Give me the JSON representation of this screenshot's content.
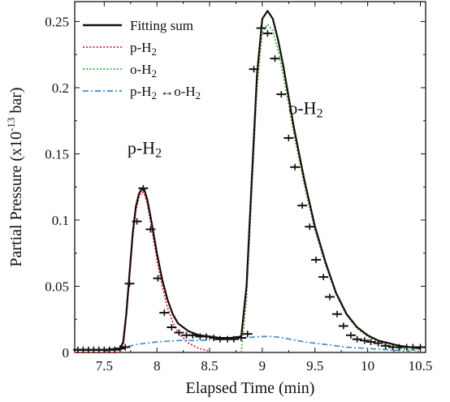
{
  "chart_data": {
    "type": "line",
    "xlabel": "Elapsed Time (min)",
    "ylabel": "Partial Pressure (x10",
    "ylabel_exp": "-13",
    "ylabel_unit": " bar)",
    "xlim": [
      7.22,
      10.55
    ],
    "ylim": [
      0,
      0.265
    ],
    "x_ticks": [
      {
        "v": 7.5,
        "label": "7.5"
      },
      {
        "v": 8,
        "label": "8"
      },
      {
        "v": 8.5,
        "label": "8.5"
      },
      {
        "v": 9,
        "label": "9"
      },
      {
        "v": 9.5,
        "label": "9.5"
      },
      {
        "v": 10,
        "label": "10"
      },
      {
        "v": 10.5,
        "label": "10.5"
      }
    ],
    "y_ticks": [
      {
        "v": 0,
        "label": "0"
      },
      {
        "v": 0.05,
        "label": "0.05"
      },
      {
        "v": 0.1,
        "label": "0.1"
      },
      {
        "v": 0.15,
        "label": "0.15"
      },
      {
        "v": 0.2,
        "label": "0.2"
      },
      {
        "v": 0.25,
        "label": "0.25"
      }
    ],
    "grid": false,
    "legend_position": "top-left",
    "legend": [
      {
        "label": "Fitting sum",
        "color": "#1a0a0a",
        "dash": "solid"
      },
      {
        "label": "p-H",
        "sub": "2",
        "color": "#e02020",
        "dash": "dotted"
      },
      {
        "label": "o-H",
        "sub": "2",
        "color": "#3cb043",
        "dash": "dotted"
      },
      {
        "label": "p-H",
        "sub": "2",
        "arrow": " ↔",
        "label2": "o-H",
        "sub2": "2",
        "color": "#3a8fd0",
        "dash": "dashdot"
      }
    ],
    "annotations": [
      {
        "label": "p-H",
        "sub": "2",
        "x": 7.72,
        "y": 0.15
      },
      {
        "label": "o-H",
        "sub": "2",
        "x": 9.25,
        "y": 0.18
      }
    ],
    "series": [
      {
        "name": "Fitting sum",
        "color": "#1a0a0a",
        "dash": "solid",
        "x": [
          7.22,
          7.5,
          7.65,
          7.68,
          7.71,
          7.74,
          7.77,
          7.8,
          7.83,
          7.86,
          7.88,
          7.91,
          7.95,
          8.0,
          8.05,
          8.1,
          8.15,
          8.2,
          8.3,
          8.4,
          8.5,
          8.6,
          8.7,
          8.8,
          8.85,
          8.9,
          8.95,
          9.0,
          9.05,
          9.1,
          9.15,
          9.2,
          9.3,
          9.4,
          9.5,
          9.6,
          9.7,
          9.8,
          9.9,
          10.0,
          10.1,
          10.2,
          10.3,
          10.4,
          10.5
        ],
        "y": [
          0.002,
          0.002,
          0.003,
          0.008,
          0.03,
          0.06,
          0.09,
          0.11,
          0.12,
          0.124,
          0.123,
          0.115,
          0.098,
          0.075,
          0.055,
          0.04,
          0.029,
          0.022,
          0.016,
          0.013,
          0.012,
          0.011,
          0.011,
          0.012,
          0.05,
          0.13,
          0.21,
          0.252,
          0.258,
          0.252,
          0.236,
          0.216,
          0.17,
          0.13,
          0.095,
          0.068,
          0.045,
          0.029,
          0.019,
          0.013,
          0.009,
          0.007,
          0.005,
          0.004,
          0.003
        ]
      },
      {
        "name": "p-H2",
        "color": "#e02020",
        "dash": "dotted",
        "x": [
          7.22,
          7.5,
          7.65,
          7.68,
          7.71,
          7.74,
          7.77,
          7.8,
          7.83,
          7.86,
          7.88,
          7.91,
          7.95,
          8.0,
          8.05,
          8.1,
          8.15,
          8.2,
          8.3,
          8.4,
          8.5
        ],
        "y": [
          0.0,
          0.0,
          0.0,
          0.005,
          0.027,
          0.057,
          0.087,
          0.107,
          0.117,
          0.121,
          0.12,
          0.112,
          0.094,
          0.07,
          0.05,
          0.034,
          0.023,
          0.015,
          0.007,
          0.003,
          0.001
        ]
      },
      {
        "name": "o-H2",
        "color": "#3cb043",
        "dash": "dotted",
        "x": [
          8.8,
          8.85,
          8.9,
          8.95,
          9.0,
          9.05,
          9.1,
          9.15,
          9.2,
          9.3,
          9.4,
          9.5,
          9.6,
          9.7,
          9.8,
          9.9,
          10.0,
          10.1,
          10.2,
          10.3,
          10.4,
          10.5
        ],
        "y": [
          0.0,
          0.04,
          0.12,
          0.2,
          0.242,
          0.248,
          0.243,
          0.228,
          0.209,
          0.165,
          0.126,
          0.092,
          0.066,
          0.044,
          0.028,
          0.018,
          0.012,
          0.008,
          0.005,
          0.003,
          0.002,
          0.001
        ]
      },
      {
        "name": "p-H2 ↔ o-H2",
        "color": "#3a8fd0",
        "dash": "dashdot",
        "x": [
          7.5,
          7.6,
          7.7,
          7.8,
          8.0,
          8.2,
          8.4,
          8.6,
          8.8,
          9.0,
          9.1,
          9.2,
          9.4,
          9.6,
          9.8,
          10.0,
          10.2,
          10.4
        ],
        "y": [
          0.001,
          0.002,
          0.004,
          0.006,
          0.008,
          0.009,
          0.009,
          0.01,
          0.011,
          0.012,
          0.012,
          0.011,
          0.008,
          0.006,
          0.004,
          0.003,
          0.002,
          0.001
        ]
      }
    ],
    "measured": {
      "name": "data",
      "color": "#111111",
      "x": [
        7.25,
        7.3,
        7.35,
        7.4,
        7.45,
        7.5,
        7.55,
        7.6,
        7.65,
        7.7,
        7.74,
        7.81,
        7.87,
        7.94,
        8.01,
        8.07,
        8.14,
        8.21,
        8.28,
        8.34,
        8.41,
        8.47,
        8.54,
        8.6,
        8.67,
        8.73,
        8.8,
        8.86,
        8.92,
        8.99,
        9.05,
        9.12,
        9.18,
        9.25,
        9.31,
        9.38,
        9.45,
        9.51,
        9.58,
        9.64,
        9.71,
        9.77,
        9.84,
        9.9,
        9.97,
        10.03,
        10.1,
        10.17,
        10.24,
        10.3,
        10.37,
        10.43,
        10.5
      ],
      "y": [
        0.002,
        0.002,
        0.002,
        0.002,
        0.002,
        0.002,
        0.002,
        0.002,
        0.003,
        0.004,
        0.052,
        0.099,
        0.124,
        0.093,
        0.056,
        0.03,
        0.019,
        0.015,
        0.013,
        0.013,
        0.012,
        0.012,
        0.011,
        0.01,
        0.01,
        0.01,
        0.011,
        0.014,
        0.214,
        0.245,
        0.241,
        0.222,
        0.195,
        0.162,
        0.14,
        0.111,
        0.095,
        0.07,
        0.057,
        0.042,
        0.029,
        0.02,
        0.013,
        0.01,
        0.009,
        0.008,
        0.007,
        0.005,
        0.004,
        0.004,
        0.004,
        0.004,
        0.004
      ]
    }
  }
}
